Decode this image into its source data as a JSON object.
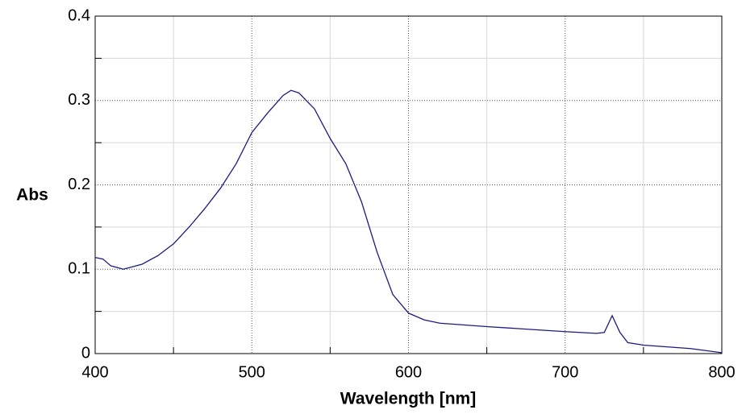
{
  "chart_data": {
    "type": "line",
    "x_label": "Wavelength [nm]",
    "y_label": "Abs",
    "x": [
      400,
      405,
      410,
      418,
      430,
      440,
      450,
      460,
      470,
      480,
      490,
      500,
      510,
      520,
      525,
      530,
      540,
      550,
      560,
      570,
      580,
      590,
      600,
      610,
      620,
      650,
      700,
      720,
      725,
      730,
      735,
      740,
      750,
      780,
      800
    ],
    "series": [
      {
        "name": "Abs",
        "color": "#1a1a80",
        "values": [
          0.114,
          0.112,
          0.104,
          0.1,
          0.106,
          0.116,
          0.13,
          0.15,
          0.172,
          0.196,
          0.225,
          0.262,
          0.285,
          0.306,
          0.312,
          0.309,
          0.29,
          0.255,
          0.225,
          0.18,
          0.12,
          0.07,
          0.048,
          0.04,
          0.036,
          0.032,
          0.026,
          0.024,
          0.025,
          0.045,
          0.025,
          0.013,
          0.01,
          0.006,
          0.001
        ]
      }
    ],
    "xlim": [
      400,
      800
    ],
    "xticks": [
      400,
      500,
      600,
      700,
      800
    ],
    "xminorticks": [
      450,
      550,
      650,
      750
    ],
    "ylim": [
      0,
      0.4
    ],
    "yticks": [
      0,
      0.1,
      0.2,
      0.3,
      0.4
    ],
    "yminorticks": [
      0.05,
      0.15,
      0.25,
      0.35
    ],
    "grid": true
  }
}
